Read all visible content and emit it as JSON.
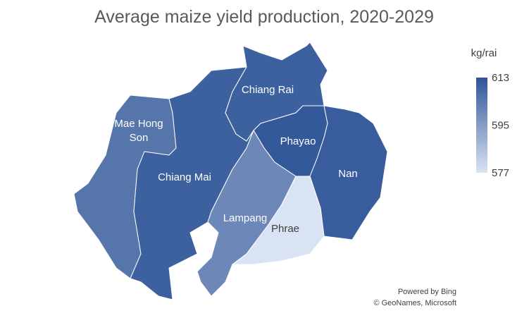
{
  "chart_data": {
    "type": "choropleth",
    "title": "Average maize yield production, 2020-2029",
    "legend_title": "kg/rai",
    "regions": [
      {
        "name": "Mae Hong Son",
        "value": 605
      },
      {
        "name": "Chiang Mai",
        "value": 610
      },
      {
        "name": "Chiang Rai",
        "value": 610
      },
      {
        "name": "Phayao",
        "value": 612
      },
      {
        "name": "Nan",
        "value": 611
      },
      {
        "name": "Lampang",
        "value": 600
      },
      {
        "name": "Phrae",
        "value": 577
      }
    ],
    "color_range": [
      "#dae3f3",
      "#2f5597"
    ],
    "clim": [
      577,
      613
    ],
    "cticks": [
      613,
      595,
      577
    ],
    "credits": [
      "Powered by Bing",
      "© GeoNames, Microsoft"
    ]
  }
}
